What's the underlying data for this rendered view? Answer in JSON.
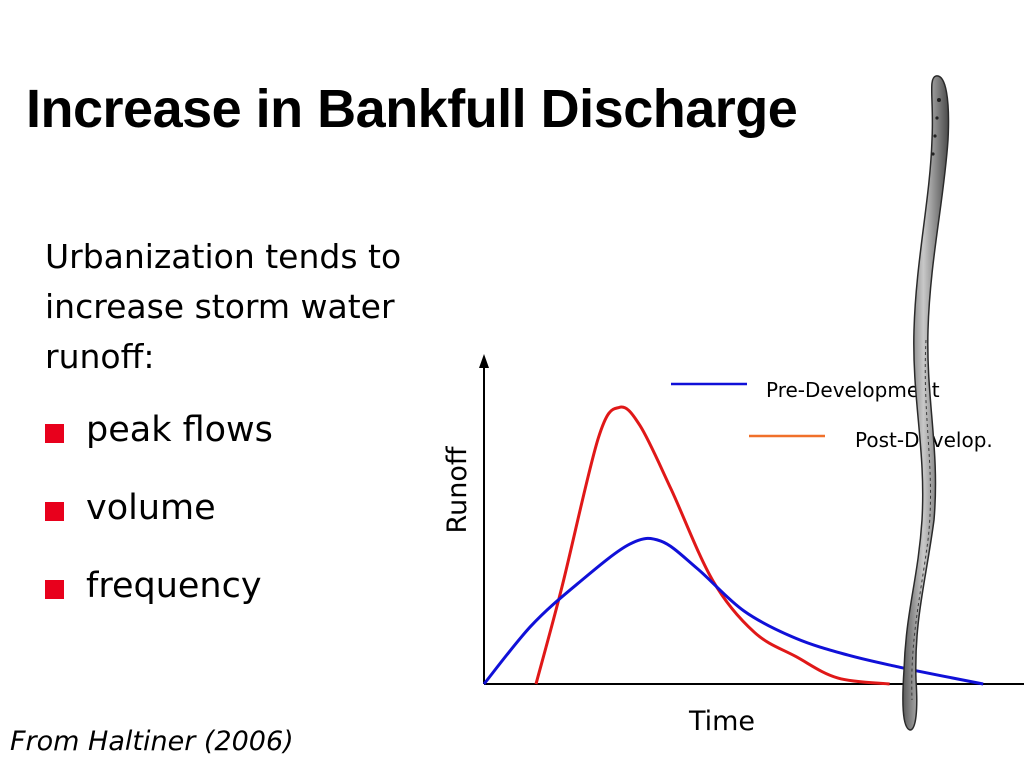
{
  "slide": {
    "title": "Increase in Bankfull Discharge",
    "intro": "Urbanization tends to increase storm water runoff:",
    "bullets": [
      "peak flows",
      "volume",
      "frequency"
    ],
    "citation": "From Haltiner (2006)"
  },
  "colors": {
    "bullet": "#e8001c",
    "pre_development": "#1010d8",
    "post_development": "#e01818",
    "legend_post_swatch": "#f0702a"
  },
  "chart_data": {
    "type": "line",
    "xlabel": "Time",
    "ylabel": "Runoff",
    "xlim": [
      0,
      10
    ],
    "ylim": [
      0,
      10
    ],
    "x_ticks": false,
    "y_ticks": false,
    "grid": false,
    "legend": "top-right",
    "series": [
      {
        "name": "Pre-Development",
        "color": "#1010d8",
        "legend_swatch_color": "#1010d8",
        "points": [
          [
            0,
            0
          ],
          [
            0.9,
            1.9
          ],
          [
            1.8,
            3.3
          ],
          [
            2.8,
            4.6
          ],
          [
            3.4,
            4.7
          ],
          [
            4.1,
            3.8
          ],
          [
            5.0,
            2.4
          ],
          [
            6.0,
            1.5
          ],
          [
            7.0,
            0.95
          ],
          [
            8.0,
            0.55
          ],
          [
            9.0,
            0.2
          ],
          [
            9.6,
            0
          ]
        ]
      },
      {
        "name": "Post-Develop.",
        "color": "#e01818",
        "legend_swatch_color": "#f0702a",
        "points": [
          [
            1.0,
            0
          ],
          [
            1.5,
            3.2
          ],
          [
            2.2,
            8.1
          ],
          [
            2.6,
            9.1
          ],
          [
            3.0,
            8.5
          ],
          [
            3.6,
            6.4
          ],
          [
            4.4,
            3.4
          ],
          [
            5.2,
            1.7
          ],
          [
            6.0,
            0.9
          ],
          [
            6.8,
            0.2
          ],
          [
            7.8,
            0
          ]
        ]
      }
    ]
  }
}
